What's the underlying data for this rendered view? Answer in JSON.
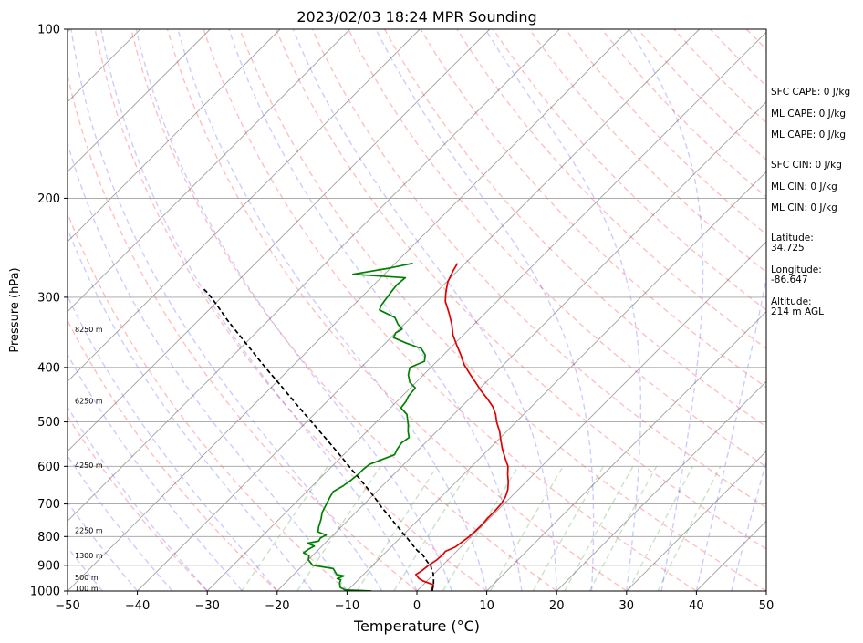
{
  "chart_data": {
    "type": "line",
    "title": "2023/02/03 18:24 MPR Sounding",
    "xlabel": "Temperature (°C)",
    "ylabel": "Pressure (hPa)",
    "xlim": [
      -50,
      50
    ],
    "ylim": [
      1000,
      100
    ],
    "y_scale": "log",
    "x_ticks": [
      "−50",
      "−40",
      "−30",
      "−20",
      "−10",
      "0",
      "10",
      "20",
      "30",
      "40",
      "50"
    ],
    "y_ticks": [
      "100",
      "200",
      "300",
      "400",
      "500",
      "600",
      "700",
      "800",
      "900",
      "1000"
    ],
    "grid": true,
    "skew": "skew-T log-P",
    "series": [
      {
        "color": "#e00000",
        "kind": "temperature",
        "points": [
          [
            2.2,
            1000
          ],
          [
            1.8,
            990
          ],
          [
            1.5,
            975
          ],
          [
            -0.5,
            960
          ],
          [
            -1.5,
            950
          ],
          [
            -2.5,
            935
          ],
          [
            -2.2,
            920
          ],
          [
            -2.0,
            900
          ],
          [
            -1.6,
            880
          ],
          [
            -1.5,
            860
          ],
          [
            -1.6,
            850
          ],
          [
            -0.8,
            835
          ],
          [
            -0.6,
            820
          ],
          [
            -0.3,
            800
          ],
          [
            -0.2,
            780
          ],
          [
            -0.2,
            760
          ],
          [
            -0.3,
            740
          ],
          [
            -0.3,
            720
          ],
          [
            -0.4,
            700
          ],
          [
            -0.8,
            680
          ],
          [
            -1.5,
            660
          ],
          [
            -2.5,
            640
          ],
          [
            -3.7,
            620
          ],
          [
            -4.8,
            600
          ],
          [
            -6.4,
            580
          ],
          [
            -8.0,
            560
          ],
          [
            -9.5,
            540
          ],
          [
            -11.0,
            520
          ],
          [
            -12.8,
            500
          ],
          [
            -14.0,
            485
          ],
          [
            -15.5,
            470
          ],
          [
            -17.4,
            455
          ],
          [
            -19.5,
            440
          ],
          [
            -21.5,
            425
          ],
          [
            -23.6,
            410
          ],
          [
            -25.7,
            395
          ],
          [
            -27.5,
            380
          ],
          [
            -29.5,
            365
          ],
          [
            -31.5,
            350
          ],
          [
            -33.2,
            335
          ],
          [
            -35.2,
            320
          ],
          [
            -37.4,
            305
          ],
          [
            -38.5,
            295
          ],
          [
            -39.8,
            282
          ],
          [
            -40.6,
            270
          ],
          [
            -41.1,
            261
          ]
        ]
      },
      {
        "color": "#008000",
        "kind": "dewpoint",
        "points": [
          [
            -6.5,
            1000
          ],
          [
            -10.5,
            995
          ],
          [
            -11.5,
            985
          ],
          [
            -12.3,
            965
          ],
          [
            -12.5,
            955
          ],
          [
            -13.2,
            950
          ],
          [
            -12.6,
            940
          ],
          [
            -13.8,
            935
          ],
          [
            -15.2,
            912
          ],
          [
            -18.6,
            900
          ],
          [
            -20.0,
            880
          ],
          [
            -20.5,
            865
          ],
          [
            -21.7,
            855
          ],
          [
            -21.5,
            843
          ],
          [
            -21.1,
            832
          ],
          [
            -22.5,
            822
          ],
          [
            -21.2,
            815
          ],
          [
            -21.4,
            805
          ],
          [
            -21.0,
            795
          ],
          [
            -22.6,
            785
          ],
          [
            -23.2,
            770
          ],
          [
            -24.0,
            745
          ],
          [
            -24.8,
            725
          ],
          [
            -25.4,
            700
          ],
          [
            -25.9,
            680
          ],
          [
            -26.2,
            665
          ],
          [
            -25.6,
            650
          ],
          [
            -25.3,
            635
          ],
          [
            -25.1,
            620
          ],
          [
            -25.1,
            607
          ],
          [
            -24.9,
            595
          ],
          [
            -23.8,
            583
          ],
          [
            -22.7,
            572
          ],
          [
            -23.1,
            560
          ],
          [
            -23.4,
            545
          ],
          [
            -23.1,
            533
          ],
          [
            -24.1,
            520
          ],
          [
            -25.1,
            505
          ],
          [
            -25.9,
            495
          ],
          [
            -26.7,
            485
          ],
          [
            -28.5,
            472
          ],
          [
            -28.7,
            460
          ],
          [
            -29.1,
            450
          ],
          [
            -29.3,
            435
          ],
          [
            -30.9,
            425
          ],
          [
            -32.2,
            412
          ],
          [
            -33.0,
            400
          ],
          [
            -31.8,
            390
          ],
          [
            -32.6,
            380
          ],
          [
            -34.1,
            370
          ],
          [
            -37.0,
            362
          ],
          [
            -39.6,
            354
          ],
          [
            -40.0,
            347
          ],
          [
            -39.6,
            342
          ],
          [
            -40.9,
            335
          ],
          [
            -42.3,
            326
          ],
          [
            -45.6,
            316
          ],
          [
            -46.0,
            310
          ],
          [
            -46.3,
            300
          ],
          [
            -46.5,
            293
          ],
          [
            -46.7,
            285
          ],
          [
            -46.5,
            277
          ],
          [
            -54.5,
            273
          ],
          [
            -50.0,
            266
          ],
          [
            -47.5,
            261
          ]
        ]
      },
      {
        "color": "#000000",
        "kind": "parcel",
        "dashed": true,
        "points": [
          [
            2.2,
            1000
          ],
          [
            1.5,
            975
          ],
          [
            0.6,
            950
          ],
          [
            -0.2,
            930
          ],
          [
            -1.0,
            915
          ],
          [
            -1.7,
            900
          ],
          [
            -2.5,
            890
          ],
          [
            -3.5,
            875
          ],
          [
            -4.5,
            860
          ],
          [
            -5.5,
            850
          ],
          [
            -6.3,
            840
          ],
          [
            -7.2,
            828
          ],
          [
            -8.2,
            815
          ],
          [
            -9.2,
            802
          ],
          [
            -10.2,
            790
          ],
          [
            -11.8,
            770
          ],
          [
            -13.5,
            750
          ],
          [
            -15.2,
            730
          ],
          [
            -17.0,
            710
          ],
          [
            -18.7,
            690
          ],
          [
            -20.5,
            670
          ],
          [
            -22.4,
            650
          ],
          [
            -24.4,
            630
          ],
          [
            -26.5,
            610
          ],
          [
            -28.6,
            590
          ],
          [
            -30.8,
            570
          ],
          [
            -33.1,
            550
          ],
          [
            -35.5,
            530
          ],
          [
            -38.0,
            510
          ],
          [
            -40.6,
            490
          ],
          [
            -43.3,
            470
          ],
          [
            -46.1,
            450
          ],
          [
            -49.0,
            430
          ],
          [
            -52.1,
            410
          ],
          [
            -55.3,
            390
          ],
          [
            -58.6,
            370
          ],
          [
            -62.1,
            350
          ],
          [
            -65.8,
            330
          ],
          [
            -69.5,
            310
          ],
          [
            -71.5,
            300
          ],
          [
            -73.0,
            293
          ],
          [
            -74.0,
            289
          ]
        ]
      }
    ],
    "height_labels": [
      "100 m",
      "500 m",
      "1300 m",
      "2250 m",
      "4250 m",
      "6250 m",
      "8250 m"
    ],
    "height_pressures": [
      988,
      945,
      865,
      780,
      597,
      459,
      342
    ]
  },
  "indices": [
    "SFC CAPE: 0 J/kg",
    "ML CAPE: 0 J/kg",
    "ML CAPE: 0 J/kg",
    "SFC CIN: 0 J/kg",
    "ML CIN: 0 J/kg",
    "ML CIN: 0 J/kg"
  ],
  "location": {
    "latitude_label": "Latitude:",
    "latitude_value": "34.725",
    "longitude_label": "Longitude:",
    "longitude_value": "-86.647",
    "altitude_label": "Altitude:",
    "altitude_value": "214 m AGL"
  }
}
